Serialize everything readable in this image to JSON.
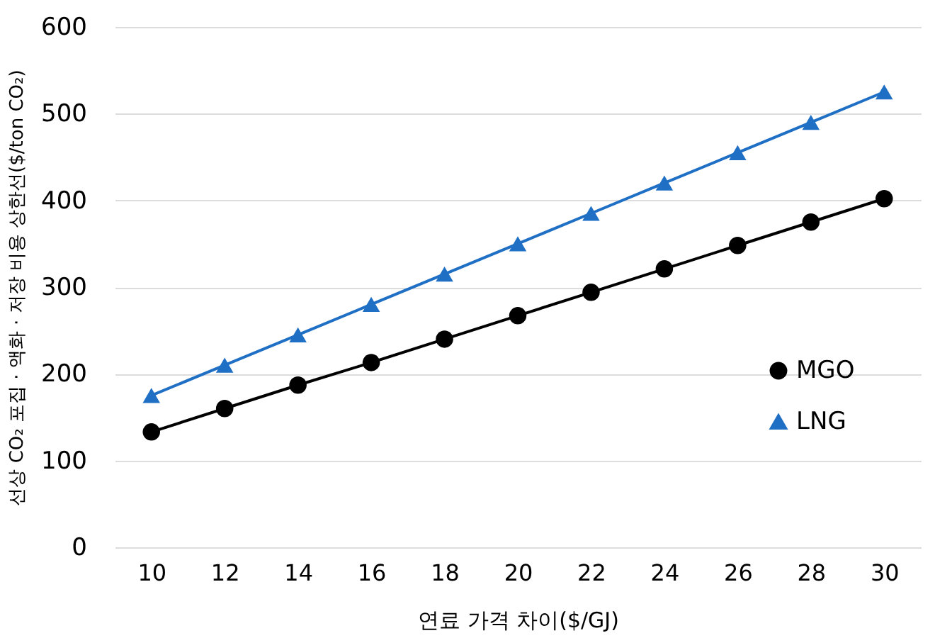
{
  "chart_data": {
    "type": "line",
    "categories": [
      "10",
      "12",
      "14",
      "16",
      "18",
      "20",
      "22",
      "24",
      "26",
      "28",
      "30"
    ],
    "xlabel": "연료 가격 차이($/GJ)",
    "ylabel": "선상 CO₂ 포집 · 액화 · 저장 비용 상한선($/ton CO₂)",
    "ylim": [
      0,
      600
    ],
    "yticks": [
      0,
      100,
      200,
      300,
      400,
      500,
      600
    ],
    "grid": "y",
    "legend": "right",
    "line_style": "solid",
    "series": [
      {
        "name": "MGO",
        "color": "#000000",
        "marker": "circle",
        "values": [
          133,
          160,
          187,
          213,
          240,
          267,
          294,
          321,
          348,
          375,
          402
        ]
      },
      {
        "name": "LNG",
        "color": "#1f6fc5",
        "marker": "triangle",
        "values": [
          175,
          210,
          245,
          280,
          315,
          350,
          385,
          420,
          455,
          490,
          525
        ]
      }
    ]
  }
}
